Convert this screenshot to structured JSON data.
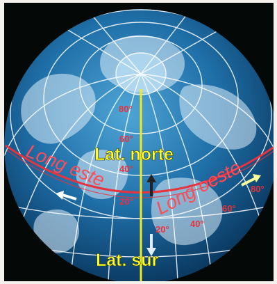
{
  "labels": {
    "north": "Lat. norte",
    "south": "Lat. sur",
    "east": "Long este",
    "west": "Long oeste"
  },
  "latitude_degrees": [
    "80°",
    "60°",
    "40°",
    "20°"
  ],
  "longitude_degrees": [
    "20°",
    "40°",
    "60°",
    "80°"
  ],
  "colors": {
    "ocean": "#1f6fa8",
    "land": "#dfeefa",
    "grid": "#ffffff",
    "meridian": "#f2ea1a",
    "equator": "#e8323c",
    "label_yellow": "#ffff2e",
    "label_red": "#ff4b55",
    "background": "#040807"
  },
  "icons": [
    "arrow-up-icon",
    "arrow-down-icon",
    "arrow-left-icon",
    "arrow-right-icon"
  ]
}
